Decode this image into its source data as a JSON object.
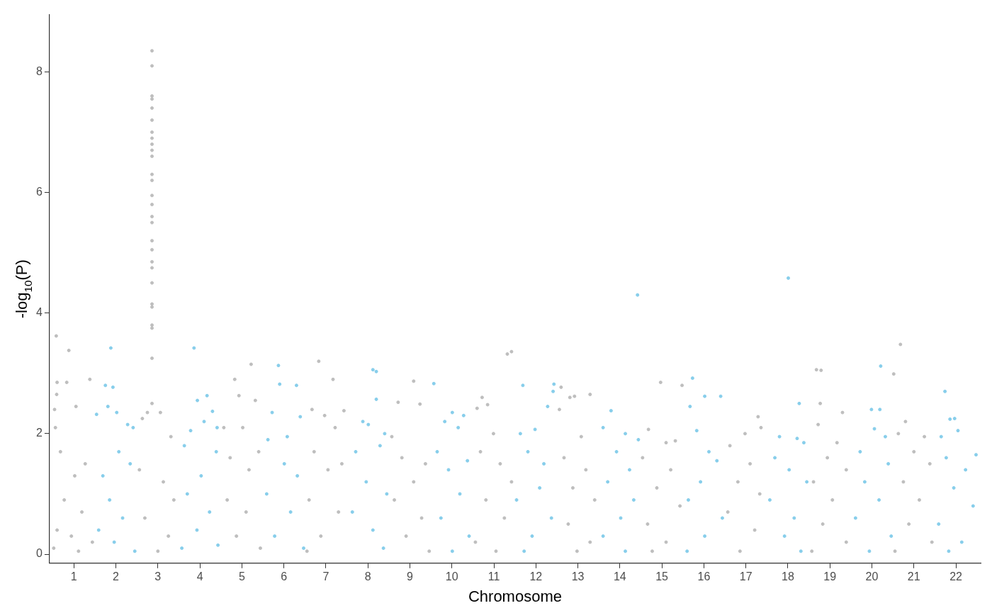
{
  "chart_data": {
    "type": "scatter",
    "xlabel": "Chromosome",
    "ylabel": "-log$_{10}$(P)",
    "xlim": [
      0.42,
      22.59
    ],
    "ylim": [
      -0.15,
      8.95
    ],
    "xticks": [
      1,
      2,
      3,
      4,
      5,
      6,
      7,
      8,
      9,
      10,
      11,
      12,
      13,
      14,
      15,
      16,
      17,
      18,
      19,
      20,
      21,
      22
    ],
    "yticks": [
      0,
      2,
      4,
      6,
      8
    ],
    "grid": false,
    "legend": false,
    "marker": "circle",
    "series": [
      {
        "color": "#bebebe",
        "x": [
          0.58,
          0.6,
          0.59,
          0.54,
          0.56,
          0.88,
          0.83,
          1.38,
          1.05,
          0.68,
          1.02,
          1.27,
          0.77,
          1.19,
          0.6,
          0.94,
          1.44,
          1.11,
          0.52,
          2.86,
          2.86,
          2.86,
          2.86,
          2.86,
          2.86,
          2.86,
          2.86,
          2.86,
          2.86,
          2.86,
          2.86,
          2.86,
          2.86,
          2.86,
          2.86,
          2.86,
          2.86,
          2.86,
          2.86,
          2.86,
          2.86,
          2.86,
          2.86,
          2.86,
          2.86,
          2.86,
          2.86,
          2.75,
          3.06,
          2.63,
          3.31,
          2.56,
          3.13,
          3.38,
          2.69,
          3.25,
          3.0,
          4.83,
          5.22,
          4.93,
          5.32,
          4.57,
          5.02,
          4.72,
          5.17,
          5.4,
          4.65,
          5.1,
          4.87,
          5.44,
          6.83,
          7.17,
          6.67,
          7.43,
          6.97,
          7.22,
          6.72,
          7.05,
          7.38,
          6.6,
          7.3,
          6.88,
          6.55,
          9.09,
          8.72,
          9.24,
          8.57,
          8.81,
          9.37,
          9.09,
          8.63,
          9.28,
          8.91,
          9.46,
          11.32,
          11.42,
          10.72,
          10.85,
          10.6,
          10.99,
          10.68,
          11.15,
          11.42,
          10.81,
          11.25,
          10.56,
          11.05,
          12.6,
          12.81,
          12.92,
          13.29,
          12.56,
          13.08,
          12.67,
          13.19,
          12.88,
          13.4,
          12.77,
          13.29,
          12.98,
          14.97,
          15.48,
          14.68,
          15.32,
          15.1,
          14.54,
          15.21,
          14.88,
          15.43,
          14.66,
          15.1,
          14.77,
          17.29,
          17.36,
          16.98,
          16.62,
          17.1,
          16.81,
          17.33,
          16.57,
          17.21,
          16.86,
          18.68,
          18.79,
          18.77,
          19.3,
          18.72,
          19.17,
          18.94,
          19.39,
          18.61,
          19.06,
          18.83,
          19.39,
          18.57,
          20.68,
          20.52,
          20.8,
          20.63,
          21.25,
          21.0,
          21.38,
          20.75,
          21.13,
          20.88,
          21.43,
          20.55
        ],
        "values": [
          3.62,
          2.85,
          2.65,
          2.4,
          2.1,
          3.38,
          2.85,
          2.9,
          2.45,
          1.7,
          1.3,
          1.5,
          0.9,
          0.7,
          0.4,
          0.3,
          0.2,
          0.05,
          0.1,
          8.35,
          8.1,
          7.6,
          7.55,
          7.4,
          7.2,
          7.0,
          6.9,
          6.8,
          6.7,
          6.6,
          6.3,
          6.2,
          5.95,
          5.8,
          5.6,
          5.5,
          5.2,
          5.05,
          4.85,
          4.75,
          4.5,
          4.15,
          4.1,
          3.8,
          3.75,
          3.25,
          2.5,
          2.35,
          2.35,
          2.25,
          1.95,
          1.4,
          1.2,
          0.9,
          0.6,
          0.3,
          0.05,
          2.9,
          3.15,
          2.63,
          2.55,
          2.1,
          2.1,
          1.6,
          1.4,
          1.7,
          0.9,
          0.7,
          0.3,
          0.1,
          3.2,
          2.9,
          2.4,
          2.38,
          2.3,
          2.1,
          1.7,
          1.4,
          1.5,
          0.9,
          0.7,
          0.3,
          0.05,
          2.87,
          2.52,
          2.49,
          1.95,
          1.6,
          1.5,
          1.2,
          0.9,
          0.6,
          0.3,
          0.05,
          3.32,
          3.36,
          2.6,
          2.48,
          2.42,
          2.0,
          1.7,
          1.5,
          1.2,
          0.9,
          0.6,
          0.2,
          0.05,
          2.77,
          2.6,
          2.62,
          2.65,
          2.4,
          1.95,
          1.6,
          1.4,
          1.1,
          0.9,
          0.5,
          0.2,
          0.05,
          2.85,
          2.8,
          2.07,
          1.88,
          1.85,
          1.6,
          1.4,
          1.1,
          0.8,
          0.5,
          0.2,
          0.05,
          2.28,
          2.1,
          2.0,
          1.8,
          1.5,
          1.2,
          1.0,
          0.7,
          0.4,
          0.05,
          3.06,
          3.05,
          2.5,
          2.35,
          2.15,
          1.85,
          1.6,
          1.4,
          1.2,
          0.9,
          0.5,
          0.2,
          0.05,
          3.48,
          2.99,
          2.2,
          2.0,
          1.95,
          1.7,
          1.5,
          1.2,
          0.9,
          0.5,
          0.2,
          0.05
        ]
      },
      {
        "color": "#87ceeb",
        "x": [
          1.88,
          1.75,
          1.93,
          1.81,
          2.02,
          2.28,
          2.41,
          1.54,
          2.07,
          1.69,
          2.34,
          1.85,
          2.16,
          1.59,
          1.96,
          2.45,
          3.86,
          3.94,
          4.17,
          4.3,
          4.1,
          4.41,
          3.78,
          3.63,
          4.39,
          4.03,
          3.7,
          4.23,
          3.93,
          3.57,
          4.43,
          5.87,
          5.9,
          6.3,
          5.72,
          6.39,
          5.62,
          6.08,
          6.01,
          6.32,
          5.59,
          6.16,
          5.78,
          6.47,
          8.12,
          8.2,
          8.2,
          7.88,
          8.01,
          8.4,
          7.71,
          8.29,
          7.96,
          8.45,
          7.63,
          8.12,
          8.37,
          9.57,
          10.01,
          10.28,
          9.83,
          10.15,
          9.65,
          10.37,
          9.92,
          10.19,
          9.74,
          10.41,
          10.01,
          11.69,
          12.43,
          12.41,
          12.28,
          11.98,
          11.63,
          11.81,
          12.19,
          12.09,
          11.54,
          12.37,
          11.91,
          11.72,
          14.42,
          13.79,
          13.6,
          14.13,
          14.44,
          13.92,
          14.23,
          13.71,
          14.33,
          14.02,
          13.6,
          14.13,
          15.73,
          16.02,
          16.4,
          15.67,
          15.83,
          16.12,
          16.31,
          15.92,
          15.63,
          16.44,
          16.02,
          15.6,
          18.01,
          18.27,
          17.8,
          18.22,
          18.38,
          17.69,
          18.03,
          18.45,
          17.57,
          18.15,
          17.92,
          18.31,
          20.21,
          19.99,
          20.19,
          20.06,
          20.32,
          19.72,
          20.39,
          19.83,
          20.17,
          19.61,
          20.46,
          19.94,
          21.74,
          21.86,
          21.97,
          22.05,
          22.48,
          21.65,
          21.77,
          22.23,
          21.95,
          22.41,
          21.59,
          22.14,
          21.83
        ],
        "values": [
          3.42,
          2.8,
          2.77,
          2.45,
          2.35,
          2.15,
          2.1,
          2.32,
          1.7,
          1.3,
          1.5,
          0.9,
          0.6,
          0.4,
          0.2,
          0.05,
          3.42,
          2.55,
          2.63,
          2.37,
          2.2,
          2.1,
          2.05,
          1.8,
          1.7,
          1.3,
          1.0,
          0.7,
          0.4,
          0.1,
          0.15,
          3.13,
          2.82,
          2.8,
          2.35,
          2.28,
          1.9,
          1.95,
          1.5,
          1.3,
          1.0,
          0.7,
          0.3,
          0.1,
          3.06,
          3.03,
          2.57,
          2.2,
          2.15,
          2.0,
          1.7,
          1.8,
          1.2,
          1.0,
          0.7,
          0.4,
          0.1,
          2.83,
          2.35,
          2.3,
          2.2,
          2.1,
          1.7,
          1.55,
          1.4,
          1.0,
          0.6,
          0.3,
          0.05,
          2.8,
          2.82,
          2.7,
          2.45,
          2.07,
          2.0,
          1.7,
          1.5,
          1.1,
          0.9,
          0.6,
          0.3,
          0.05,
          4.3,
          2.38,
          2.1,
          2.0,
          1.9,
          1.7,
          1.4,
          1.2,
          0.9,
          0.6,
          0.3,
          0.05,
          2.92,
          2.62,
          2.62,
          2.45,
          2.05,
          1.7,
          1.55,
          1.2,
          0.9,
          0.6,
          0.3,
          0.05,
          4.58,
          2.5,
          1.95,
          1.92,
          1.85,
          1.6,
          1.4,
          1.2,
          0.9,
          0.6,
          0.3,
          0.05,
          3.12,
          2.4,
          2.4,
          2.08,
          1.95,
          1.7,
          1.5,
          1.2,
          0.9,
          0.6,
          0.3,
          0.05,
          2.7,
          2.24,
          2.25,
          2.05,
          1.65,
          1.95,
          1.6,
          1.4,
          1.1,
          0.8,
          0.5,
          0.2,
          0.05
        ]
      }
    ]
  }
}
